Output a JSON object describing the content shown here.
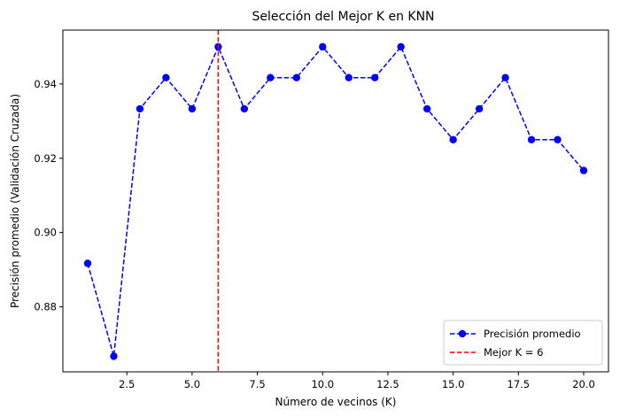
{
  "chart_data": {
    "type": "line",
    "title": "Selección del Mejor K en KNN",
    "xlabel": "Número de vecinos (K)",
    "ylabel": "Precisión promedio (Validación Cruzada)",
    "xlim": [
      0.05,
      20.95
    ],
    "ylim": [
      0.8625,
      0.9545
    ],
    "xticks": [
      2.5,
      5.0,
      7.5,
      10.0,
      12.5,
      15.0,
      17.5,
      20.0
    ],
    "xtick_labels": [
      "2.5",
      "5.0",
      "7.5",
      "10.0",
      "12.5",
      "15.0",
      "17.5",
      "20.0"
    ],
    "yticks": [
      0.88,
      0.9,
      0.92,
      0.94
    ],
    "ytick_labels": [
      "0.88",
      "0.90",
      "0.92",
      "0.94"
    ],
    "grid": false,
    "legend_position": "lower-right",
    "series": [
      {
        "name": "Precisión promedio",
        "color": "#0000ff",
        "style": "dashed-line-with-circle-markers",
        "x": [
          1,
          2,
          3,
          4,
          5,
          6,
          7,
          8,
          9,
          10,
          11,
          12,
          13,
          14,
          15,
          16,
          17,
          18,
          19,
          20
        ],
        "y": [
          0.8917,
          0.8667,
          0.9333,
          0.9417,
          0.9333,
          0.95,
          0.9333,
          0.9417,
          0.9417,
          0.95,
          0.9417,
          0.9417,
          0.95,
          0.9333,
          0.925,
          0.9333,
          0.9417,
          0.925,
          0.925,
          0.9167
        ]
      }
    ],
    "reference_lines": [
      {
        "name": "Mejor K = 6",
        "orientation": "vertical",
        "x": 6,
        "color": "#ff0000",
        "style": "dashed"
      }
    ]
  }
}
